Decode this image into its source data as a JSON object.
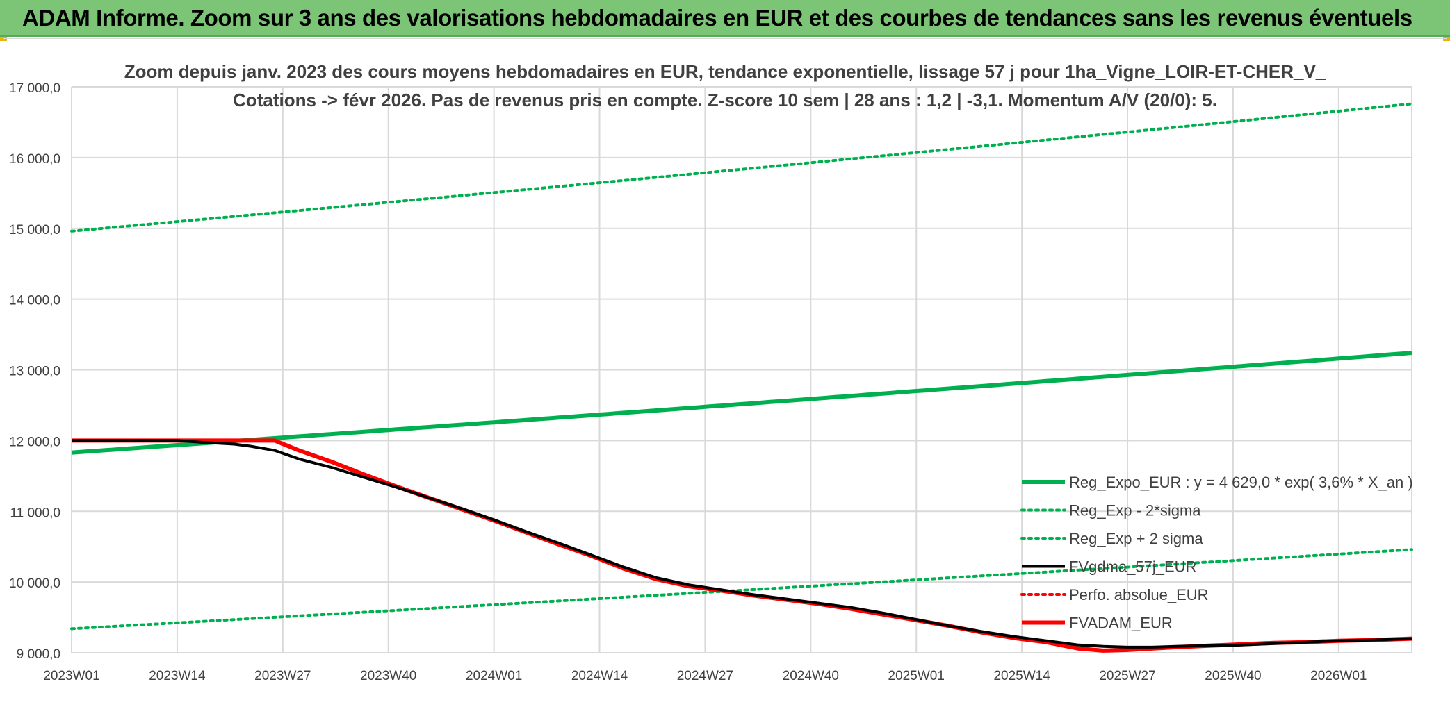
{
  "banner": {
    "title": "ADAM Informe. Zoom sur 3 ans des valorisations hebdomadaires en EUR et des courbes de tendances sans les revenus éventuels",
    "background": "#7cc576"
  },
  "chart_data": {
    "type": "line",
    "title": "Zoom depuis janv. 2023 des cours moyens hebdomadaires en EUR, tendance exponentielle, lissage 57 j pour 1ha_Vigne_LOIR-ET-CHER_V_",
    "subtitle": "Cotations -> févr 2026. Pas de revenus pris en compte. Z-score 10 sem | 28 ans : 1,2 | -3,1. Momentum A/V (20/0): 5.",
    "xlabel": "",
    "ylabel": "",
    "ylim": [
      9000,
      17000
    ],
    "grid": true,
    "legend_position": "right",
    "y_ticks": [
      "9 000,0",
      "10 000,0",
      "11 000,0",
      "12 000,0",
      "13 000,0",
      "14 000,0",
      "15 000,0",
      "16 000,0",
      "17 000,0"
    ],
    "x_ticks": [
      "2023W01",
      "2023W14",
      "2023W27",
      "2023W40",
      "2024W01",
      "2024W14",
      "2024W27",
      "2024W40",
      "2025W01",
      "2025W14",
      "2025W27",
      "2025W40",
      "2026W01"
    ],
    "x_range_weeks": [
      0,
      165
    ],
    "series": [
      {
        "name": "Reg_Expo_EUR : y = 4 629,0 * exp( 3,6% *  X_an )",
        "color": "#00b050",
        "style": "solid-thick",
        "x": [
          0,
          165
        ],
        "values": [
          11830,
          13240
        ],
        "curve": "exponential"
      },
      {
        "name": "Reg_Exp - 2*sigma",
        "color": "#00b050",
        "style": "dotted",
        "x": [
          0,
          165
        ],
        "values": [
          9340,
          10460
        ],
        "curve": "exponential"
      },
      {
        "name": "Reg_Exp + 2 sigma",
        "color": "#00b050",
        "style": "dotted",
        "x": [
          0,
          165
        ],
        "values": [
          14960,
          16760
        ],
        "curve": "exponential"
      },
      {
        "name": "FVgdma_57j_EUR",
        "color": "#000000",
        "style": "solid",
        "x": [
          0,
          13,
          16,
          20,
          22,
          25,
          28,
          32,
          36,
          40,
          44,
          48,
          52,
          56,
          60,
          64,
          68,
          72,
          76,
          80,
          84,
          88,
          92,
          96,
          100,
          104,
          108,
          112,
          116,
          120,
          124,
          127,
          130,
          133,
          136,
          140,
          144,
          148,
          152,
          156,
          160,
          165
        ],
        "values": [
          12000,
          12000,
          11975,
          11950,
          11920,
          11860,
          11740,
          11620,
          11480,
          11340,
          11190,
          11040,
          10880,
          10710,
          10550,
          10380,
          10210,
          10060,
          9960,
          9890,
          9820,
          9760,
          9700,
          9640,
          9560,
          9470,
          9380,
          9300,
          9230,
          9170,
          9110,
          9090,
          9080,
          9080,
          9090,
          9100,
          9110,
          9130,
          9150,
          9170,
          9180,
          9200
        ]
      },
      {
        "name": "Perfo. absolue_EUR",
        "color": "#ff0000",
        "style": "dotted",
        "x": [],
        "values": []
      },
      {
        "name": "FVADAM_EUR",
        "color": "#ff0000",
        "style": "solid-thick",
        "x": [
          0,
          20,
          25,
          28,
          32,
          36,
          40,
          44,
          48,
          52,
          56,
          60,
          64,
          68,
          72,
          76,
          80,
          84,
          88,
          92,
          96,
          100,
          104,
          108,
          112,
          116,
          120,
          124,
          127,
          130,
          133,
          136,
          140,
          144,
          148,
          152,
          156,
          160,
          165
        ],
        "values": [
          12000,
          12000,
          12000,
          11860,
          11700,
          11520,
          11350,
          11190,
          11030,
          10870,
          10700,
          10530,
          10370,
          10190,
          10040,
          9940,
          9880,
          9810,
          9750,
          9690,
          9620,
          9540,
          9460,
          9380,
          9290,
          9210,
          9150,
          9060,
          9030,
          9040,
          9060,
          9080,
          9100,
          9120,
          9140,
          9150,
          9170,
          9180,
          9200
        ]
      }
    ]
  }
}
